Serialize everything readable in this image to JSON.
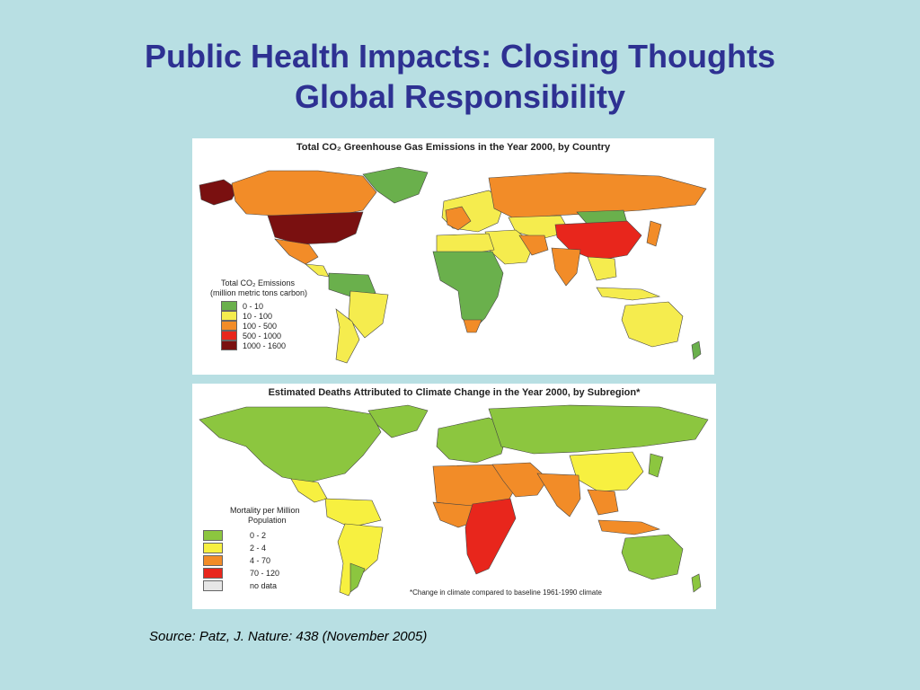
{
  "slide": {
    "title_line1": "Public Health Impacts: Closing Thoughts",
    "title_line2": "Global Responsibility",
    "source": "Source: Patz, J. Nature: 438 (November 2005)"
  },
  "map_emissions": {
    "title": "Total CO₂ Greenhouse Gas Emissions in the Year 2000, by Country",
    "legend_title_line1": "Total CO₂ Emissions",
    "legend_title_line2": "(million metric tons carbon)",
    "legend": [
      {
        "label": "0 - 10",
        "color": "#6ab04c"
      },
      {
        "label": "10 - 100",
        "color": "#f5ec4e"
      },
      {
        "label": "100 - 500",
        "color": "#f28c28"
      },
      {
        "label": "500 - 1000",
        "color": "#e8261c"
      },
      {
        "label": "1000 - 1600",
        "color": "#7a1010"
      }
    ]
  },
  "map_deaths": {
    "title": "Estimated Deaths Attributed to Climate Change in the Year 2000, by Subregion*",
    "legend_title_line1": "Mortality per Million",
    "legend_title_line2": "Population",
    "legend": [
      {
        "label": "0 - 2",
        "color": "#8cc63f"
      },
      {
        "label": "2 - 4",
        "color": "#f7f040"
      },
      {
        "label": "4 - 70",
        "color": "#f28c28"
      },
      {
        "label": "70 - 120",
        "color": "#e8261c"
      },
      {
        "label": "no data",
        "color": "#e6e6e6"
      }
    ],
    "footnote": "*Change in climate compared to baseline 1961-1990 climate"
  },
  "colors": {
    "background": "#b8dfe3",
    "title": "#2e3192"
  }
}
